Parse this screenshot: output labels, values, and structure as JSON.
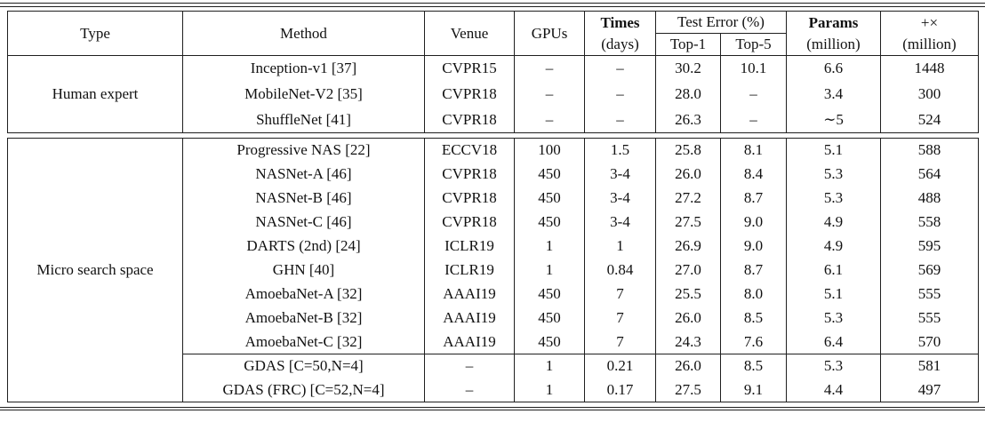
{
  "table": {
    "header": {
      "type": "Type",
      "method": "Method",
      "venue": "Venue",
      "gpus": "GPUs",
      "times_line1": "Times",
      "times_line2": "(days)",
      "test_error": "Test Error (%)",
      "top1": "Top-1",
      "top5": "Top-5",
      "params_line1": "Params",
      "params_line2": "(million)",
      "flops_line1": "+×",
      "flops_line2": "(million)"
    },
    "sections": [
      {
        "type": "Human expert",
        "rows": [
          {
            "method": "Inception-v1 [37]",
            "venue": "CVPR15",
            "gpus": "–",
            "times": "–",
            "top1": "30.2",
            "top5": "10.1",
            "params": "6.6",
            "flops": "1448"
          },
          {
            "method": "MobileNet-V2 [35]",
            "venue": "CVPR18",
            "gpus": "–",
            "times": "–",
            "top1": "28.0",
            "top5": "–",
            "params": "3.4",
            "flops": "300"
          },
          {
            "method": "ShuffleNet [41]",
            "venue": "CVPR18",
            "gpus": "–",
            "times": "–",
            "top1": "26.3",
            "top5": "–",
            "params": "∼5",
            "flops": "524"
          }
        ]
      },
      {
        "type": "Micro search space",
        "divider_before": 9,
        "rows": [
          {
            "method": "Progressive NAS [22]",
            "venue": "ECCV18",
            "gpus": "100",
            "times": "1.5",
            "top1": "25.8",
            "top5": "8.1",
            "params": "5.1",
            "flops": "588"
          },
          {
            "method": "NASNet-A [46]",
            "venue": "CVPR18",
            "gpus": "450",
            "times": "3-4",
            "top1": "26.0",
            "top5": "8.4",
            "params": "5.3",
            "flops": "564"
          },
          {
            "method": "NASNet-B [46]",
            "venue": "CVPR18",
            "gpus": "450",
            "times": "3-4",
            "top1": "27.2",
            "top5": "8.7",
            "params": "5.3",
            "flops": "488"
          },
          {
            "method": "NASNet-C [46]",
            "venue": "CVPR18",
            "gpus": "450",
            "times": "3-4",
            "top1": "27.5",
            "top5": "9.0",
            "params": "4.9",
            "flops": "558"
          },
          {
            "method": "DARTS (2nd) [24]",
            "venue": "ICLR19",
            "gpus": "1",
            "times": "1",
            "top1": "26.9",
            "top5": "9.0",
            "params": "4.9",
            "flops": "595"
          },
          {
            "method": "GHN [40]",
            "venue": "ICLR19",
            "gpus": "1",
            "times": "0.84",
            "top1": "27.0",
            "top5": "8.7",
            "params": "6.1",
            "flops": "569"
          },
          {
            "method": "AmoebaNet-A [32]",
            "venue": "AAAI19",
            "gpus": "450",
            "times": "7",
            "top1": "25.5",
            "top5": "8.0",
            "params": "5.1",
            "flops": "555"
          },
          {
            "method": "AmoebaNet-B [32]",
            "venue": "AAAI19",
            "gpus": "450",
            "times": "7",
            "top1": "26.0",
            "top5": "8.5",
            "params": "5.3",
            "flops": "555"
          },
          {
            "method": "AmoebaNet-C [32]",
            "venue": "AAAI19",
            "gpus": "450",
            "times": "7",
            "top1": "24.3",
            "top5": "7.6",
            "params": "6.4",
            "flops": "570",
            "bold": [
              "top1",
              "top5"
            ]
          },
          {
            "method": "GDAS [C=50,N=4]",
            "venue": "–",
            "gpus": "1",
            "times": "0.21",
            "top1": "26.0",
            "top5": "8.5",
            "params": "5.3",
            "flops": "581"
          },
          {
            "method": "GDAS (FRC) [C=52,N=4]",
            "venue": "–",
            "gpus": "1",
            "times": "0.17",
            "top1": "27.5",
            "top5": "9.1",
            "params": "4.4",
            "flops": "497",
            "bold": [
              "gpus",
              "times",
              "params",
              "flops"
            ]
          }
        ]
      }
    ]
  }
}
